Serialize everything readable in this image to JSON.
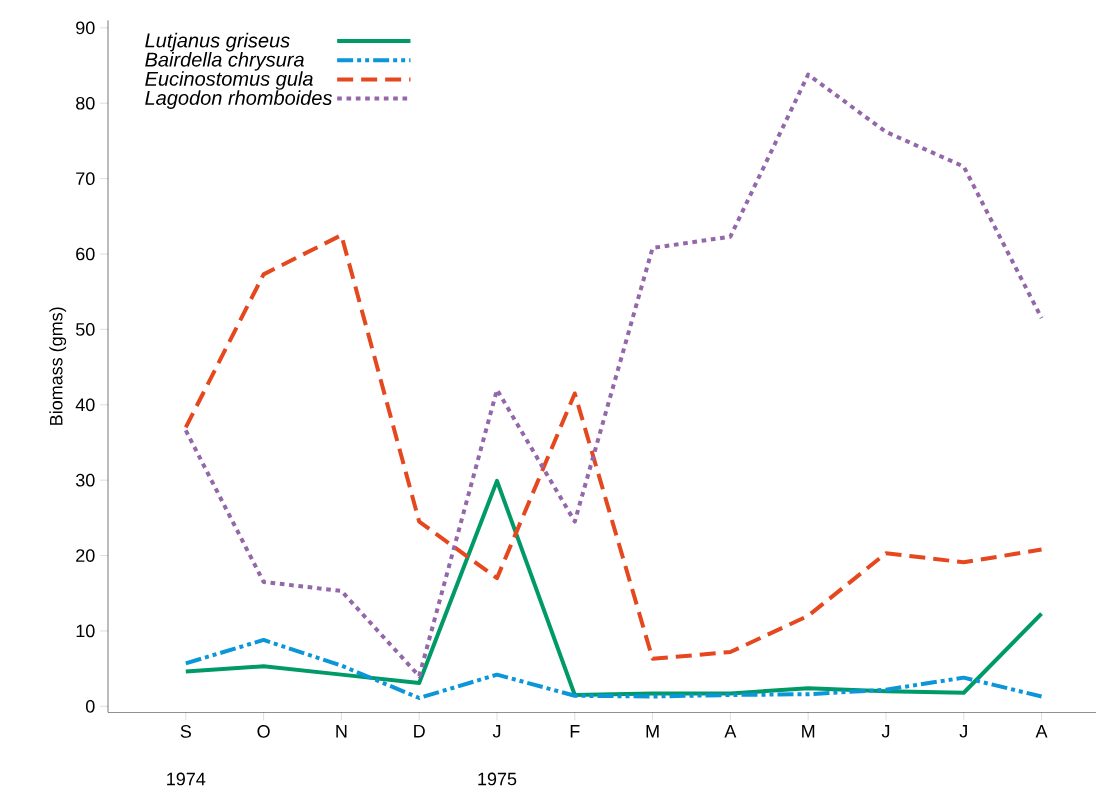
{
  "chart_data": {
    "type": "line",
    "ylabel": "Biomass (gms)",
    "categories": [
      "S",
      "O",
      "N",
      "D",
      "J",
      "F",
      "M",
      "A",
      "M",
      "J",
      "J",
      "A"
    ],
    "annotations": [
      "1974",
      "1975"
    ],
    "series": [
      {
        "name": "Lutjanus griseus",
        "color": "#009a69",
        "line_style": "solid",
        "values": [
          4.6,
          5.3,
          4.2,
          3.1,
          29.9,
          1.5,
          1.7,
          1.7,
          2.4,
          2.0,
          1.8,
          12.3
        ]
      },
      {
        "name": "Bairdella chrysura",
        "color": "#0a96d8",
        "line_style": "dashdotdotted",
        "values": [
          5.7,
          8.8,
          5.4,
          1.1,
          4.2,
          1.4,
          1.3,
          1.5,
          1.6,
          2.2,
          3.8,
          1.3
        ]
      },
      {
        "name": "Eucinostomus gula",
        "color": "#e5481e",
        "line_style": "dashed",
        "values": [
          37,
          57.3,
          62.5,
          24.5,
          17,
          41.5,
          6.3,
          7.2,
          12,
          20.3,
          19.1,
          20.8
        ]
      },
      {
        "name": "Lagodon rhomboides",
        "color": "#9467aa",
        "line_style": "dotted",
        "values": [
          36.6,
          16.5,
          15.3,
          4,
          42,
          24.5,
          60.8,
          62.3,
          83.8,
          76.2,
          71.6,
          51.5
        ]
      }
    ],
    "ylim": [
      -0.8,
      91
    ],
    "yticks": [
      0,
      10,
      20,
      30,
      40,
      50,
      60,
      70,
      80,
      90
    ],
    "legend": "top left",
    "grid": false,
    "marker": "none"
  }
}
